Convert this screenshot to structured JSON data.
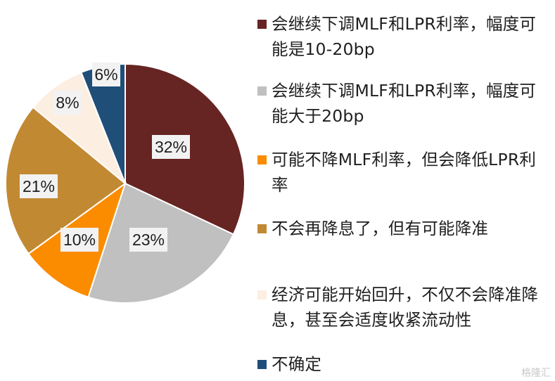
{
  "chart_data": {
    "type": "pie",
    "title": "",
    "slices": [
      {
        "label": "会继续下调MLF和LPR利率，幅度可能是10-20bp",
        "value": 32,
        "display": "32%",
        "color": "#662422"
      },
      {
        "label": "会继续下调MLF和LPR利率，幅度可能大于20bp",
        "value": 23,
        "display": "23%",
        "color": "#c0c0c0"
      },
      {
        "label": "可能不降MLF利率，但会降低LPR利率",
        "value": 10,
        "display": "10%",
        "color": "#fb8c00"
      },
      {
        "label": "不会再降息了，但有可能降准",
        "value": 21,
        "display": "21%",
        "color": "#c28933"
      },
      {
        "label": "经济可能开始回升，不仅不会降准降息，甚至会适度收紧流动性",
        "value": 8,
        "display": "8%",
        "color": "#fdeee2"
      },
      {
        "label": "不确定",
        "value": 6,
        "display": "6%",
        "color": "#1f4e79"
      }
    ],
    "legend_placement": "right"
  },
  "watermark": "格隆汇"
}
